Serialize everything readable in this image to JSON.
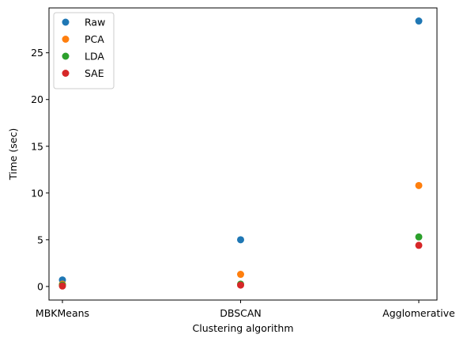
{
  "chart_data": {
    "type": "scatter",
    "xlabel": "Clustering algorithm",
    "ylabel": "Time (sec)",
    "categories": [
      "MBKMeans",
      "DBSCAN",
      "Agglomerative"
    ],
    "ylim": [
      -1.45,
      29.8
    ],
    "yticks": [
      0,
      5,
      10,
      15,
      20,
      25
    ],
    "legend_position": "top-left",
    "series": [
      {
        "name": "Raw",
        "color": "#1f77b4",
        "values": [
          0.7,
          5.0,
          28.4
        ]
      },
      {
        "name": "PCA",
        "color": "#ff7f0e",
        "values": [
          0.25,
          1.3,
          10.8
        ]
      },
      {
        "name": "LDA",
        "color": "#2ca02c",
        "values": [
          0.15,
          0.25,
          5.3
        ]
      },
      {
        "name": "SAE",
        "color": "#d62728",
        "values": [
          0.05,
          0.15,
          4.4
        ]
      }
    ]
  }
}
